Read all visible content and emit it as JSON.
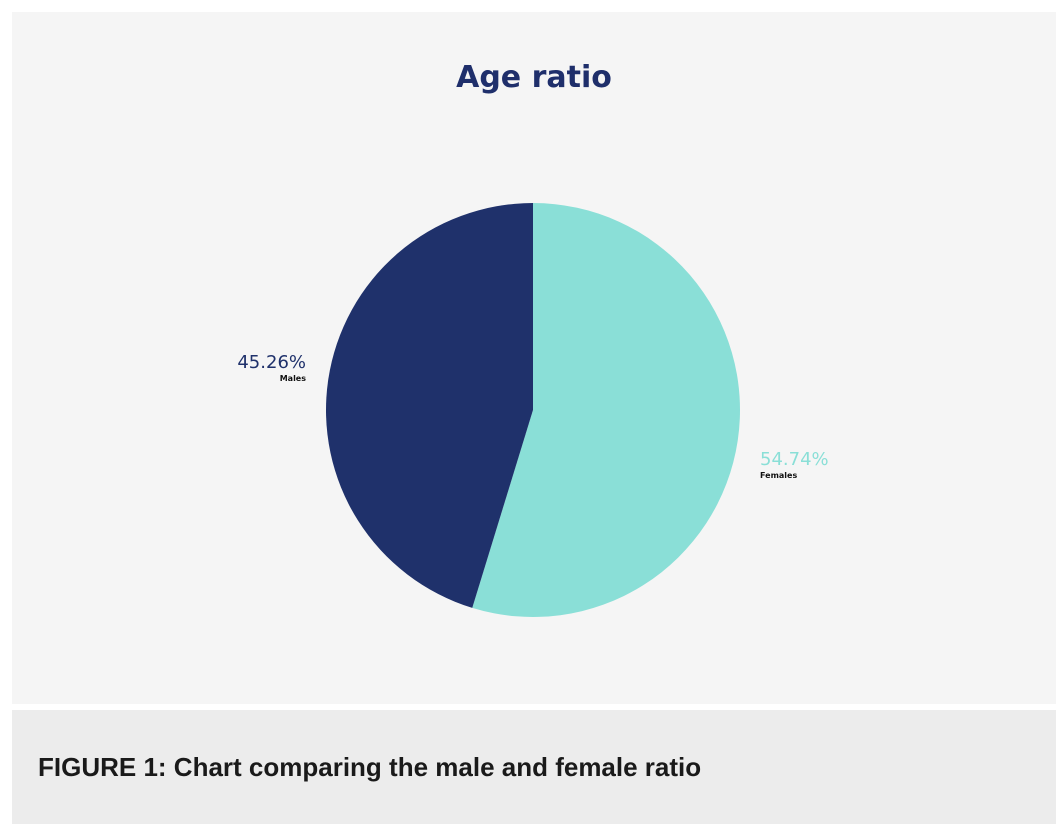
{
  "chart_data": {
    "type": "pie",
    "title": "Age ratio",
    "slices": [
      {
        "label": "Females",
        "value": 54.74,
        "display": "54.74%",
        "color": "#8adfd7"
      },
      {
        "label": "Males",
        "value": 45.26,
        "display": "45.26%",
        "color": "#1f316b"
      }
    ],
    "start": "12 o'clock, clockwise",
    "legend": "none (labels beside slices)"
  },
  "caption": {
    "text": "FIGURE 1: Chart comparing the male and female ratio"
  },
  "colors": {
    "title": "#1f2f6b",
    "panel_bg": "#f5f5f5",
    "caption_bg": "#ececec"
  }
}
